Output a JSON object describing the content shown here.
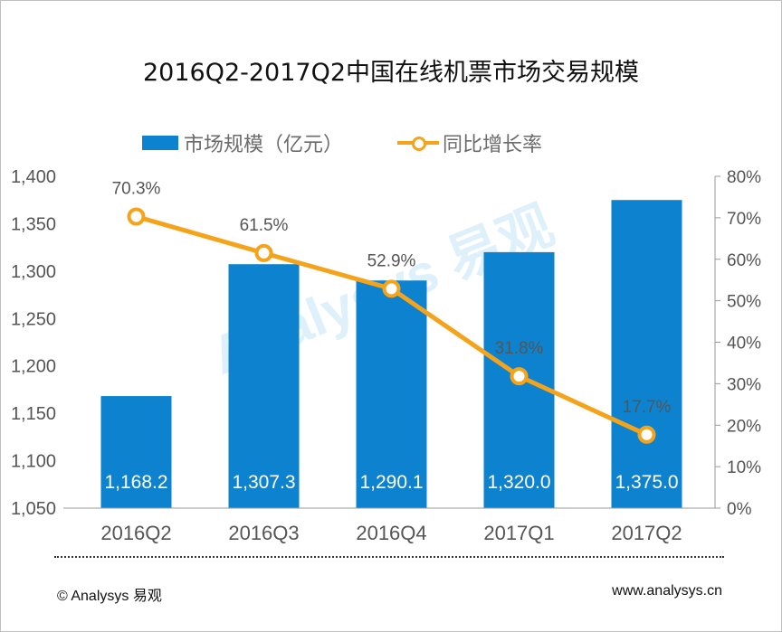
{
  "chart_data": {
    "type": "bar+line",
    "title": "2016Q2-2017Q2中国在线机票市场交易规模",
    "categories": [
      "2016Q2",
      "2016Q3",
      "2016Q4",
      "2017Q1",
      "2017Q2"
    ],
    "series": [
      {
        "name": "市场规模（亿元）",
        "type": "bar",
        "axis": "left",
        "values": [
          1168.2,
          1307.3,
          1290.1,
          1320.0,
          1375.0
        ],
        "labels": [
          "1,168.2",
          "1,307.3",
          "1,290.1",
          "1,320.0",
          "1,375.0"
        ],
        "color": "#0d83cf"
      },
      {
        "name": "同比增长率",
        "type": "line",
        "axis": "right",
        "values": [
          70.3,
          61.5,
          52.9,
          31.8,
          17.7
        ],
        "labels": [
          "70.3%",
          "61.5%",
          "52.9%",
          "31.8%",
          "17.7%"
        ],
        "color": "#f5a31a"
      }
    ],
    "ylim_left": [
      1050,
      1400
    ],
    "yticks_left": [
      "1,050",
      "1,100",
      "1,150",
      "1,200",
      "1,250",
      "1,300",
      "1,350",
      "1,400"
    ],
    "ylim_right": [
      0,
      80
    ],
    "yticks_right": [
      "0%",
      "10%",
      "20%",
      "30%",
      "40%",
      "50%",
      "60%",
      "70%",
      "80%"
    ],
    "legend": [
      "市场规模（亿元）",
      "同比增长率"
    ],
    "legend_position": "top"
  },
  "watermark": "Analysys 易观",
  "footer": {
    "left": "© Analysys 易观",
    "right": "www.analysys.cn"
  }
}
